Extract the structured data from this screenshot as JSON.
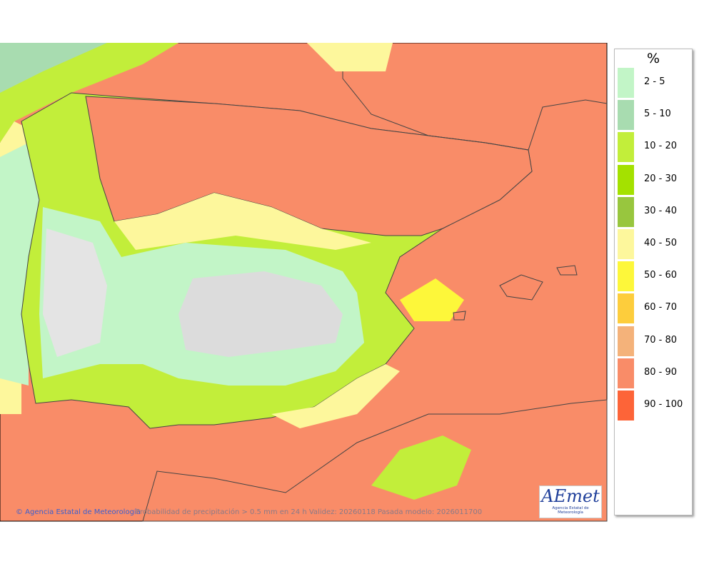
{
  "legend": {
    "title": "%",
    "entries": [
      {
        "label": "2 - 5",
        "color": "#c2f5c7"
      },
      {
        "label": "5 - 10",
        "color": "#a8dcb0"
      },
      {
        "label": "10 - 20",
        "color": "#c2ee3a"
      },
      {
        "label": "20 - 30",
        "color": "#a4e100"
      },
      {
        "label": "30 - 40",
        "color": "#98c63e"
      },
      {
        "label": "40 - 50",
        "color": "#fdf79c"
      },
      {
        "label": "50 - 60",
        "color": "#fdf73a"
      },
      {
        "label": "60 - 70",
        "color": "#fdcd3c"
      },
      {
        "label": "70 - 80",
        "color": "#f4b27a"
      },
      {
        "label": "80 - 90",
        "color": "#f98c68"
      },
      {
        "label": "90 - 100",
        "color": "#fd6438"
      }
    ]
  },
  "footer": {
    "credit": "© Agencia Estatal de Meteorología",
    "caption": "Probabilidad de precipitación > 0.5 mm en 24 h Validez: 20260118 Pasada modelo: 2026011700"
  },
  "logo": {
    "name": "AEmet",
    "subtitle": "Agencia Estatal de Meteorología"
  }
}
